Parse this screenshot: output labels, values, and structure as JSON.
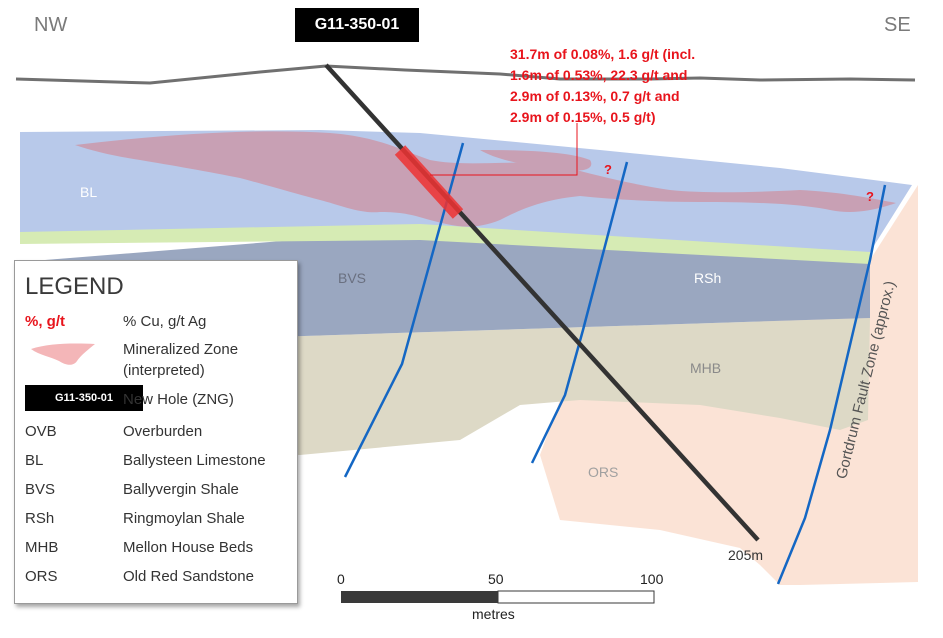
{
  "compass": {
    "left": "NW",
    "right": "SE"
  },
  "hole_title": "G11-350-01",
  "assay_lines": [
    "31.7m of 0.08%, 1.6 g/t (incl.",
    "1.6m of 0.53%, 22.3 g/t and",
    "2.9m of 0.13%, 0.7 g/t and",
    "2.9m of 0.15%, 0.5 g/t)"
  ],
  "question_mark": "?",
  "units": {
    "bl": "BL",
    "bvs": "BVS",
    "rsh": "RSh",
    "mhb": "MHB",
    "ors": "ORS"
  },
  "depth_label": "205m",
  "fault_label": "Gortdrum Fault Zone (approx.)",
  "scale": {
    "ticks": [
      "0",
      "50",
      "100"
    ],
    "unit": "metres"
  },
  "legend": {
    "title": "LEGEND",
    "assay_code": "%, g/t",
    "assay_desc": "% Cu, g/t Ag",
    "mineral_desc_1": "Mineralized Zone",
    "mineral_desc_2": "(interpreted)",
    "hole_badge": "G11-350-01",
    "hole_desc": "New Hole (ZNG)",
    "rows": [
      {
        "code": "OVB",
        "desc": "Overburden"
      },
      {
        "code": "BL",
        "desc": "Ballysteen Limestone"
      },
      {
        "code": "BVS",
        "desc": "Ballyvergin Shale"
      },
      {
        "code": "RSh",
        "desc": "Ringmoylan Shale"
      },
      {
        "code": "MHB",
        "desc": "Mellon House Beds"
      },
      {
        "code": "ORS",
        "desc": "Old Red Sandstone"
      }
    ]
  },
  "colors": {
    "bl": "#b8c9ea",
    "bvs": "#d6ebb4",
    "rsh": "#9aa7c0",
    "mhb": "#ddd9c6",
    "ors": "#fbe2d4",
    "mineral": "#c8a0b4",
    "fault": "#1467c4",
    "drill": "#333333",
    "assay": "#e8141c",
    "intercept": "#ee3333"
  }
}
